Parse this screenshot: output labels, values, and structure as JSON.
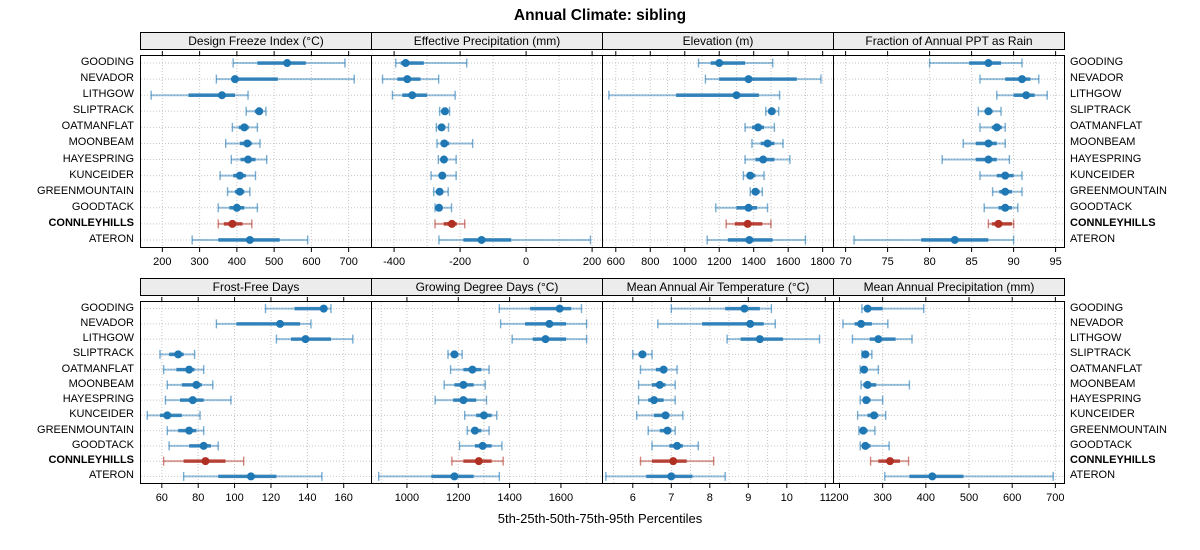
{
  "chart_data": {
    "type": "scatter",
    "variant": "lattice percentile dotplot (5th-25th-50th-75th-95th), 2x4 panels, whisker + thick IQR bar + median dot",
    "title": "Annual Climate: sibling",
    "caption": "5th-25th-50th-75th-95th Percentiles",
    "legend_position": "bottom-caption",
    "grid": "dotted vertical at ticks and dotted horizontal per site row",
    "sites": [
      "GOODING",
      "NEVADOR",
      "LITHGOW",
      "SLIPTRACK",
      "OATMANFLAT",
      "MOONBEAM",
      "HAYESPRING",
      "KUNCEIDER",
      "GREENMOUNTAIN",
      "GOODTACK",
      "CONNLEYHILLS",
      "ATERON"
    ],
    "highlight_site": "CONNLEYHILLS",
    "percentile_labels": [
      "5th",
      "25th",
      "50th",
      "75th",
      "95th"
    ],
    "colors": {
      "series": "#1f77b4",
      "highlight": "#b03024",
      "strip_bg": "#ececec",
      "grid": "#c6c6c6",
      "border": "#000000"
    },
    "layout": {
      "rows": 2,
      "cols": 4
    },
    "panels": [
      {
        "title": "Design Freeze Index (°C)",
        "row": 0,
        "col": 0,
        "xlim": [
          140,
          760
        ],
        "ticks": [
          200,
          300,
          400,
          500,
          600,
          700
        ],
        "gridx": [
          200,
          300,
          400,
          500,
          600,
          700
        ],
        "values": [
          [
            390,
            455,
            535,
            585,
            690
          ],
          [
            345,
            385,
            395,
            510,
            715
          ],
          [
            170,
            270,
            360,
            395,
            430
          ],
          [
            425,
            448,
            460,
            470,
            478
          ],
          [
            388,
            405,
            420,
            432,
            455
          ],
          [
            370,
            408,
            428,
            440,
            462
          ],
          [
            385,
            410,
            430,
            450,
            480
          ],
          [
            355,
            390,
            408,
            424,
            450
          ],
          [
            375,
            395,
            408,
            420,
            435
          ],
          [
            350,
            380,
            400,
            420,
            455
          ],
          [
            350,
            365,
            388,
            415,
            440
          ],
          [
            280,
            350,
            435,
            515,
            590
          ]
        ]
      },
      {
        "title": "Effective Precipitation (mm)",
        "row": 0,
        "col": 1,
        "xlim": [
          -470,
          230
        ],
        "ticks": [
          -400,
          -200,
          0,
          200
        ],
        "gridx": [
          -400,
          -300,
          -200,
          -100,
          0,
          100,
          200
        ],
        "values": [
          [
            -395,
            -380,
            -365,
            -310,
            -180
          ],
          [
            -435,
            -390,
            -360,
            -320,
            -265
          ],
          [
            -405,
            -375,
            -345,
            -300,
            -215
          ],
          [
            -262,
            -252,
            -246,
            -240,
            -232
          ],
          [
            -272,
            -262,
            -256,
            -249,
            -235
          ],
          [
            -270,
            -258,
            -248,
            -233,
            -162
          ],
          [
            -266,
            -257,
            -249,
            -238,
            -212
          ],
          [
            -288,
            -265,
            -254,
            -244,
            -212
          ],
          [
            -280,
            -270,
            -262,
            -254,
            -236
          ],
          [
            -276,
            -270,
            -264,
            -254,
            -226
          ],
          [
            -276,
            -250,
            -225,
            -210,
            -186
          ],
          [
            -264,
            -190,
            -135,
            -45,
            195
          ]
        ]
      },
      {
        "title": "Elevation (m)",
        "row": 0,
        "col": 2,
        "xlim": [
          520,
          1860
        ],
        "ticks": [
          600,
          800,
          1000,
          1200,
          1400,
          1600,
          1800
        ],
        "gridx": [
          600,
          700,
          800,
          900,
          1000,
          1100,
          1200,
          1300,
          1400,
          1500,
          1600,
          1700,
          1800
        ],
        "values": [
          [
            1080,
            1150,
            1200,
            1350,
            1510
          ],
          [
            1120,
            1200,
            1370,
            1650,
            1790
          ],
          [
            560,
            950,
            1300,
            1430,
            1550
          ],
          [
            1470,
            1490,
            1505,
            1525,
            1545
          ],
          [
            1350,
            1390,
            1425,
            1460,
            1520
          ],
          [
            1390,
            1440,
            1480,
            1520,
            1570
          ],
          [
            1350,
            1410,
            1455,
            1520,
            1610
          ],
          [
            1340,
            1360,
            1380,
            1410,
            1460
          ],
          [
            1380,
            1395,
            1410,
            1435,
            1450
          ],
          [
            1180,
            1300,
            1370,
            1420,
            1480
          ],
          [
            1240,
            1290,
            1365,
            1450,
            1500
          ],
          [
            1130,
            1250,
            1375,
            1510,
            1700
          ]
        ]
      },
      {
        "title": "Fraction of Annual PPT as Rain",
        "row": 0,
        "col": 3,
        "xlim": [
          68.5,
          96
        ],
        "ticks": [
          70,
          75,
          80,
          85,
          90,
          95
        ],
        "gridx": [
          70,
          75,
          80,
          85,
          90,
          95
        ],
        "values": [
          [
            80,
            84.7,
            87,
            88.5,
            91
          ],
          [
            86,
            89,
            91,
            92,
            93
          ],
          [
            88,
            90,
            91.5,
            92.5,
            94
          ],
          [
            85.8,
            86.6,
            87,
            87.5,
            88.5
          ],
          [
            86,
            87.4,
            88,
            88.6,
            89
          ],
          [
            84,
            85.5,
            87,
            88,
            89
          ],
          [
            81.5,
            85.5,
            87,
            88,
            89.5
          ],
          [
            86,
            88,
            89,
            90,
            91
          ],
          [
            87.5,
            88.3,
            89,
            89.8,
            91
          ],
          [
            86.5,
            88.2,
            89,
            89.8,
            90.5
          ],
          [
            87,
            87.4,
            88.2,
            89.8,
            90
          ],
          [
            71,
            79,
            83,
            87,
            90
          ]
        ]
      },
      {
        "title": "Frost-Free Days",
        "row": 1,
        "col": 0,
        "xlim": [
          48,
          175
        ],
        "ticks": [
          60,
          80,
          100,
          120,
          140,
          160
        ],
        "gridx": [
          60,
          80,
          100,
          120,
          140,
          160
        ],
        "values": [
          [
            117,
            133,
            149,
            151,
            153
          ],
          [
            90,
            101,
            125,
            136,
            142
          ],
          [
            123,
            131,
            139,
            153,
            165
          ],
          [
            59,
            64,
            69,
            72,
            78
          ],
          [
            61,
            68,
            75,
            78,
            83
          ],
          [
            63,
            71,
            79,
            82,
            88
          ],
          [
            62,
            70,
            77,
            83,
            98
          ],
          [
            52,
            59,
            63,
            71,
            81
          ],
          [
            63,
            69,
            75,
            79,
            83
          ],
          [
            64,
            75,
            83,
            87,
            91
          ],
          [
            61,
            72,
            84,
            95,
            105
          ],
          [
            72,
            91,
            109,
            123,
            148
          ]
        ]
      },
      {
        "title": "Growing Degree Days (°C)",
        "row": 1,
        "col": 1,
        "xlim": [
          860,
          1760
        ],
        "ticks": [
          1000,
          1200,
          1400,
          1600
        ],
        "gridx": [
          900,
          1000,
          1100,
          1200,
          1300,
          1400,
          1500,
          1600,
          1700
        ],
        "values": [
          [
            1360,
            1480,
            1595,
            1640,
            1680
          ],
          [
            1365,
            1460,
            1555,
            1620,
            1700
          ],
          [
            1410,
            1490,
            1540,
            1620,
            1700
          ],
          [
            1160,
            1175,
            1185,
            1200,
            1215
          ],
          [
            1170,
            1220,
            1255,
            1290,
            1320
          ],
          [
            1145,
            1185,
            1220,
            1260,
            1305
          ],
          [
            1110,
            1180,
            1220,
            1270,
            1310
          ],
          [
            1225,
            1270,
            1300,
            1330,
            1350
          ],
          [
            1235,
            1250,
            1265,
            1290,
            1320
          ],
          [
            1205,
            1265,
            1295,
            1330,
            1370
          ],
          [
            1175,
            1220,
            1280,
            1330,
            1375
          ],
          [
            890,
            1095,
            1185,
            1260,
            1360
          ]
        ]
      },
      {
        "title": "Mean Annual Air Temperature (°C)",
        "row": 1,
        "col": 2,
        "xlim": [
          5.2,
          11.2
        ],
        "ticks": [
          6,
          7,
          8,
          9,
          10,
          11
        ],
        "gridx": [
          5.5,
          6,
          6.5,
          7,
          7.5,
          8,
          8.5,
          9,
          9.5,
          10,
          10.5,
          11
        ],
        "values": [
          [
            7.0,
            8.4,
            8.9,
            9.3,
            9.6
          ],
          [
            6.65,
            7.8,
            9.05,
            9.4,
            9.7
          ],
          [
            8.45,
            8.8,
            9.3,
            9.9,
            10.85
          ],
          [
            6.0,
            6.15,
            6.25,
            6.35,
            6.5
          ],
          [
            6.2,
            6.6,
            6.8,
            6.9,
            7.15
          ],
          [
            6.15,
            6.5,
            6.7,
            6.85,
            7.1
          ],
          [
            6.15,
            6.4,
            6.55,
            6.8,
            7.1
          ],
          [
            6.1,
            6.55,
            6.85,
            6.95,
            7.3
          ],
          [
            6.4,
            6.7,
            6.9,
            7.0,
            7.1
          ],
          [
            6.5,
            6.95,
            7.15,
            7.3,
            7.7
          ],
          [
            6.2,
            6.5,
            7.05,
            7.4,
            8.1
          ],
          [
            5.3,
            6.35,
            7.0,
            7.55,
            8.4
          ]
        ]
      },
      {
        "title": "Mean Annual Precipitation (mm)",
        "row": 1,
        "col": 3,
        "xlim": [
          185,
          720
        ],
        "ticks": [
          200,
          300,
          400,
          500,
          600,
          700
        ],
        "gridx": [
          200,
          300,
          400,
          500,
          600,
          700
        ],
        "values": [
          [
            252,
            258,
            265,
            300,
            395
          ],
          [
            208,
            235,
            250,
            275,
            312
          ],
          [
            230,
            270,
            290,
            330,
            368
          ],
          [
            252,
            255,
            260,
            268,
            275
          ],
          [
            248,
            252,
            257,
            265,
            290
          ],
          [
            250,
            255,
            265,
            285,
            362
          ],
          [
            248,
            255,
            262,
            272,
            300
          ],
          [
            242,
            265,
            280,
            290,
            307
          ],
          [
            245,
            250,
            255,
            265,
            282
          ],
          [
            248,
            252,
            260,
            272,
            315
          ],
          [
            272,
            290,
            317,
            340,
            360
          ],
          [
            305,
            362,
            415,
            487,
            695
          ]
        ]
      }
    ]
  }
}
